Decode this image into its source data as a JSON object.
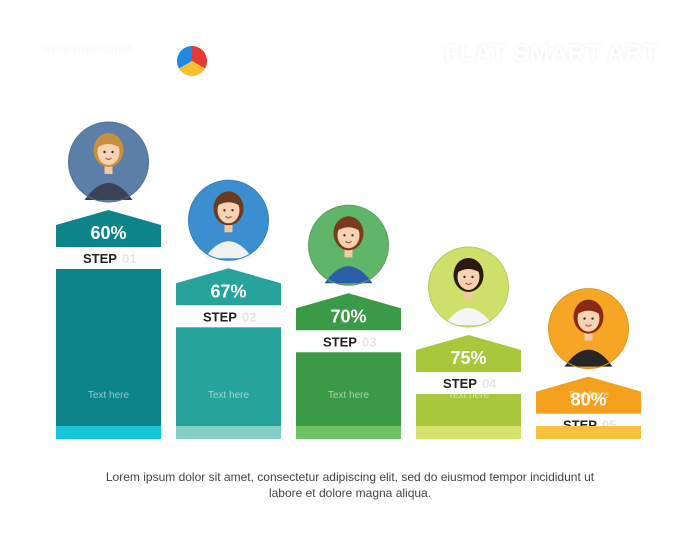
{
  "header": {
    "left_title": "INFOGRAPHICS",
    "right_title": "FLAT SMART ART"
  },
  "logo": {
    "colors": [
      "#e53935",
      "#fbc02d",
      "#1e88e5"
    ]
  },
  "chart_data": {
    "type": "bar",
    "title": "",
    "xlabel": "",
    "ylabel": "",
    "ylim": [
      0,
      100
    ],
    "categories": [
      "STEP 01",
      "STEP 02",
      "STEP 03",
      "STEP 04",
      "STEP 05"
    ],
    "values": [
      60,
      67,
      70,
      75,
      80
    ],
    "display_values": [
      "60%",
      "67%",
      "70%",
      "75%",
      "80%"
    ],
    "step_label": "STEP",
    "step_numbers": [
      "01",
      "02",
      "03",
      "04",
      "05"
    ],
    "bar_captions": [
      "Text here",
      "Text here",
      "Text here",
      "Text here",
      "Text here"
    ],
    "colors": [
      "#0d8489",
      "#26a39a",
      "#3a9a45",
      "#a9c73b",
      "#f5a01d"
    ],
    "base_colors": [
      "#18c6da",
      "#83cfc6",
      "#6dc266",
      "#d3e36b",
      "#f9c23c"
    ],
    "icons": [
      "woman-with-glasses-icon",
      "woman-pointing-icon",
      "woman-holding-document-icon",
      "woman-holding-card-icon",
      "woman-holding-salad-icon"
    ],
    "circle_colors": [
      "#5b7fa8",
      "#3b8fd1",
      "#5fb56a",
      "#cfe06a",
      "#f6a624"
    ]
  },
  "footer": {
    "text": "Lorem ipsum dolor sit amet, consectetur adipiscing elit, sed do eiusmod tempor incididunt ut labore et dolore magna aliqua."
  }
}
